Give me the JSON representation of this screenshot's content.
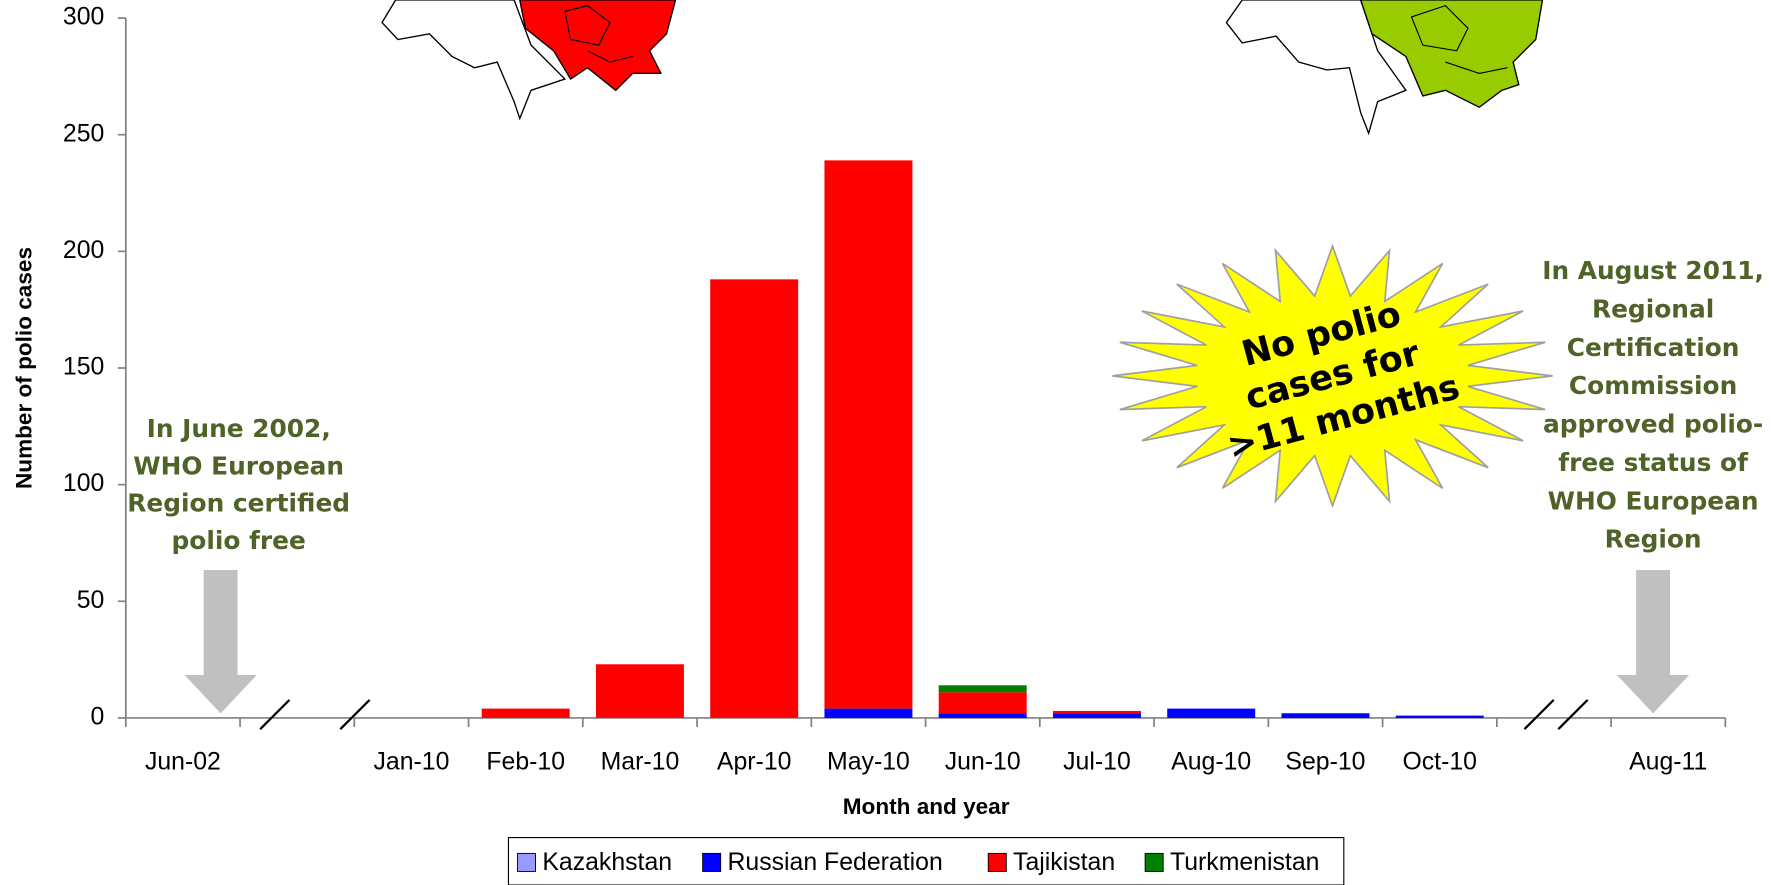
{
  "chart_data": {
    "type": "stacked_bar",
    "y_label": "Number of polio cases",
    "x_label": "Month and year",
    "categories": [
      "Jun-02",
      null,
      "Jan-10",
      "Feb-10",
      "Mar-10",
      "Apr-10",
      "May-10",
      "Jun-10",
      "Jul-10",
      "Aug-10",
      "Sep-10",
      "Oct-10",
      null,
      "Aug-11"
    ],
    "series": [
      {
        "name": "Kazakhstan",
        "color": "#9999ff",
        "values": [
          0,
          null,
          0,
          0,
          0,
          0,
          0,
          0,
          0,
          0,
          0,
          0,
          null,
          0
        ]
      },
      {
        "name": "Russian Federation",
        "color": "#0000ff",
        "values": [
          0,
          null,
          0,
          0,
          0,
          0,
          4,
          2,
          2,
          4,
          2,
          1,
          null,
          0
        ]
      },
      {
        "name": "Tajikistan",
        "color": "#ff0000",
        "values": [
          0,
          null,
          0,
          4,
          23,
          188,
          235,
          9,
          1,
          0,
          0,
          0,
          null,
          0
        ]
      },
      {
        "name": "Turkmenistan",
        "color": "#008000",
        "values": [
          0,
          null,
          0,
          0,
          0,
          0,
          0,
          3,
          0,
          0,
          0,
          0,
          null,
          0
        ]
      }
    ],
    "ylim": [
      0,
      300
    ],
    "yticks": [
      0,
      50,
      100,
      150,
      200,
      250,
      300
    ],
    "grid": false,
    "legend": "bottom",
    "annotations": [
      {
        "lines": [
          "In June 2002,",
          "WHO European",
          "Region certified",
          "polio free"
        ]
      },
      {
        "lines": [
          "In August  2011,",
          "Regional",
          "Certification",
          "Commission",
          "approved polio-",
          "free status of",
          "WHO European",
          "Region"
        ]
      },
      {
        "lines": [
          "No polio",
          "cases for",
          ">11 months"
        ]
      }
    ]
  }
}
